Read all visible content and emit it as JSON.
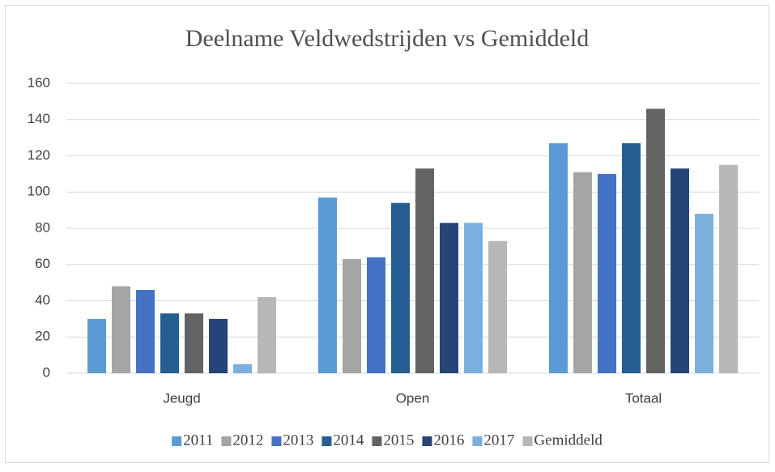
{
  "chart_data": {
    "type": "bar",
    "title": "Deelname Veldwedstrijden vs Gemiddeld",
    "categories": [
      "Jeugd",
      "Open",
      "Totaal"
    ],
    "series": [
      {
        "name": "2011",
        "color": "#5b9bd5",
        "values": [
          30,
          97,
          127
        ]
      },
      {
        "name": "2012",
        "color": "#a5a5a5",
        "values": [
          48,
          63,
          111
        ]
      },
      {
        "name": "2013",
        "color": "#4472c4",
        "values": [
          46,
          64,
          110
        ]
      },
      {
        "name": "2014",
        "color": "#255e91",
        "values": [
          33,
          94,
          127
        ]
      },
      {
        "name": "2015",
        "color": "#636363",
        "values": [
          33,
          113,
          146
        ]
      },
      {
        "name": "2016",
        "color": "#264478",
        "values": [
          30,
          83,
          113
        ]
      },
      {
        "name": "2017",
        "color": "#7cafdd",
        "values": [
          5,
          83,
          88
        ]
      },
      {
        "name": "Gemiddeld",
        "color": "#b7b7b7",
        "values": [
          42,
          73,
          115
        ]
      }
    ],
    "ylim": [
      0,
      160
    ],
    "yticks": [
      0,
      20,
      40,
      60,
      80,
      100,
      120,
      140,
      160
    ],
    "grid": true,
    "legend": "bottom"
  }
}
